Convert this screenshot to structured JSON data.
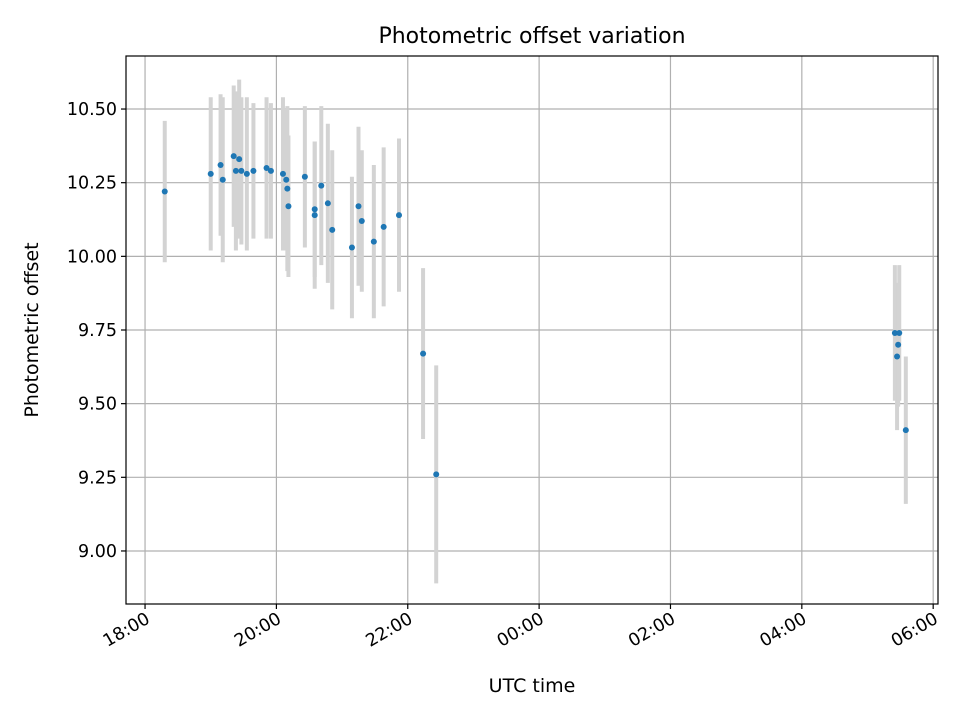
{
  "chart_data": {
    "type": "scatter",
    "title": "Photometric offset variation",
    "xlabel": "UTC time",
    "ylabel": "Photometric offset",
    "x_type": "time",
    "xlim": [
      "18:00",
      "06:00 (+1 day)"
    ],
    "ylim": [
      8.82,
      10.68
    ],
    "x_ticks": [
      "18:00",
      "20:00",
      "22:00",
      "00:00",
      "02:00",
      "04:00",
      "06:00"
    ],
    "y_ticks": [
      "9.00",
      "9.25",
      "9.50",
      "9.75",
      "10.00",
      "10.25",
      "10.50"
    ],
    "grid": true,
    "marker_color": "#1f77b4",
    "errorbar_color": "#d3d3d3",
    "series": [
      {
        "points": [
          {
            "t": "18:18",
            "y": 10.22,
            "err": 0.24
          },
          {
            "t": "19:00",
            "y": 10.28,
            "err": 0.26
          },
          {
            "t": "19:09",
            "y": 10.31,
            "err": 0.24
          },
          {
            "t": "19:11",
            "y": 10.26,
            "err": 0.28
          },
          {
            "t": "19:21",
            "y": 10.34,
            "err": 0.24
          },
          {
            "t": "19:23",
            "y": 10.29,
            "err": 0.27
          },
          {
            "t": "19:26",
            "y": 10.33,
            "err": 0.27
          },
          {
            "t": "19:28",
            "y": 10.29,
            "err": 0.25
          },
          {
            "t": "19:33",
            "y": 10.28,
            "err": 0.26
          },
          {
            "t": "19:39",
            "y": 10.29,
            "err": 0.23
          },
          {
            "t": "19:51",
            "y": 10.3,
            "err": 0.24
          },
          {
            "t": "19:55",
            "y": 10.29,
            "err": 0.23
          },
          {
            "t": "20:06",
            "y": 10.28,
            "err": 0.26
          },
          {
            "t": "20:09",
            "y": 10.26,
            "err": 0.24
          },
          {
            "t": "20:10",
            "y": 10.23,
            "err": 0.28
          },
          {
            "t": "20:11",
            "y": 10.17,
            "err": 0.24
          },
          {
            "t": "20:26",
            "y": 10.27,
            "err": 0.24
          },
          {
            "t": "20:35",
            "y": 10.16,
            "err": 0.23
          },
          {
            "t": "20:35",
            "y": 10.14,
            "err": 0.25
          },
          {
            "t": "20:41",
            "y": 10.24,
            "err": 0.27
          },
          {
            "t": "20:47",
            "y": 10.18,
            "err": 0.27
          },
          {
            "t": "20:51",
            "y": 10.09,
            "err": 0.27
          },
          {
            "t": "21:09",
            "y": 10.03,
            "err": 0.24
          },
          {
            "t": "21:15",
            "y": 10.17,
            "err": 0.27
          },
          {
            "t": "21:18",
            "y": 10.12,
            "err": 0.24
          },
          {
            "t": "21:29",
            "y": 10.05,
            "err": 0.26
          },
          {
            "t": "21:38",
            "y": 10.1,
            "err": 0.27
          },
          {
            "t": "21:52",
            "y": 10.14,
            "err": 0.26
          },
          {
            "t": "22:14",
            "y": 9.67,
            "err": 0.29
          },
          {
            "t": "22:26",
            "y": 9.26,
            "err": 0.37
          },
          {
            "t": "05:25",
            "y": 9.74,
            "err": 0.23
          },
          {
            "t": "05:27",
            "y": 9.66,
            "err": 0.25
          },
          {
            "t": "05:28",
            "y": 9.7,
            "err": 0.21
          },
          {
            "t": "05:29",
            "y": 9.74,
            "err": 0.23
          },
          {
            "t": "05:35",
            "y": 9.41,
            "err": 0.25
          }
        ]
      }
    ]
  }
}
